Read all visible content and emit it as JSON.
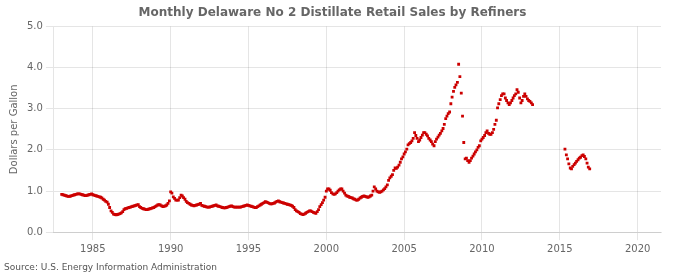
{
  "chart_data": {
    "type": "scatter",
    "title": "Monthly Delaware No 2 Distillate Retail Sales by Refiners",
    "y_label": "Dollars per Gallon",
    "annotations": [
      "Source: U.S. Energy Information Administration"
    ],
    "xlim": [
      1982.5,
      2021.5
    ],
    "ylim": [
      0.0,
      5.0
    ],
    "xticks": [
      1985,
      1990,
      1995,
      2000,
      2005,
      2010,
      2015,
      2020
    ],
    "yticks": [
      {
        "value": 0.0,
        "label": "0.0"
      },
      {
        "value": 1.0,
        "label": "1.0"
      },
      {
        "value": 2.0,
        "label": "2.0"
      },
      {
        "value": 3.0,
        "label": "3.0"
      },
      {
        "value": 4.0,
        "label": "4.0"
      },
      {
        "value": 5.0,
        "label": "5.0"
      }
    ],
    "grid": true,
    "series": [
      {
        "color": "#cc0000",
        "marker": "square",
        "x": [
          1983.0,
          1983.08,
          1983.17,
          1983.25,
          1983.33,
          1983.42,
          1983.5,
          1983.58,
          1983.67,
          1983.75,
          1983.83,
          1983.92,
          1984.0,
          1984.08,
          1984.17,
          1984.25,
          1984.33,
          1984.42,
          1984.5,
          1984.58,
          1984.67,
          1984.75,
          1984.83,
          1984.92,
          1985.0,
          1985.08,
          1985.17,
          1985.25,
          1985.33,
          1985.42,
          1985.5,
          1985.58,
          1985.67,
          1985.75,
          1985.83,
          1985.92,
          1986.0,
          1986.08,
          1986.17,
          1986.25,
          1986.33,
          1986.42,
          1986.5,
          1986.58,
          1986.67,
          1986.75,
          1986.83,
          1986.92,
          1987.0,
          1987.08,
          1987.17,
          1987.25,
          1987.33,
          1987.42,
          1987.5,
          1987.58,
          1987.67,
          1987.75,
          1987.83,
          1987.92,
          1988.0,
          1988.08,
          1988.17,
          1988.25,
          1988.33,
          1988.42,
          1988.5,
          1988.58,
          1988.67,
          1988.75,
          1988.83,
          1988.92,
          1989.0,
          1989.08,
          1989.17,
          1989.25,
          1989.33,
          1989.42,
          1989.5,
          1989.58,
          1989.67,
          1989.75,
          1989.83,
          1989.92,
          1990.0,
          1990.08,
          1990.17,
          1990.25,
          1990.33,
          1990.42,
          1990.5,
          1990.58,
          1990.67,
          1990.75,
          1990.83,
          1990.92,
          1991.0,
          1991.08,
          1991.17,
          1991.25,
          1991.33,
          1991.42,
          1991.5,
          1991.58,
          1991.67,
          1991.75,
          1991.83,
          1991.92,
          1992.0,
          1992.08,
          1992.17,
          1992.25,
          1992.33,
          1992.42,
          1992.5,
          1992.58,
          1992.67,
          1992.75,
          1992.83,
          1992.92,
          1993.0,
          1993.08,
          1993.17,
          1993.25,
          1993.33,
          1993.42,
          1993.5,
          1993.58,
          1993.67,
          1993.75,
          1993.83,
          1993.92,
          1994.0,
          1994.08,
          1994.17,
          1994.25,
          1994.33,
          1994.42,
          1994.5,
          1994.58,
          1994.67,
          1994.75,
          1994.83,
          1994.92,
          1995.0,
          1995.08,
          1995.17,
          1995.25,
          1995.33,
          1995.42,
          1995.5,
          1995.58,
          1995.67,
          1995.75,
          1995.83,
          1995.92,
          1996.0,
          1996.08,
          1996.17,
          1996.25,
          1996.33,
          1996.42,
          1996.5,
          1996.58,
          1996.67,
          1996.75,
          1996.83,
          1996.92,
          1997.0,
          1997.08,
          1997.17,
          1997.25,
          1997.33,
          1997.42,
          1997.5,
          1997.58,
          1997.67,
          1997.75,
          1997.83,
          1997.92,
          1998.0,
          1998.08,
          1998.17,
          1998.25,
          1998.33,
          1998.42,
          1998.5,
          1998.58,
          1998.67,
          1998.75,
          1998.83,
          1998.92,
          1999.0,
          1999.08,
          1999.17,
          1999.25,
          1999.33,
          1999.42,
          1999.5,
          1999.58,
          1999.67,
          1999.75,
          1999.83,
          1999.92,
          2000.0,
          2000.08,
          2000.17,
          2000.25,
          2000.33,
          2000.42,
          2000.5,
          2000.58,
          2000.67,
          2000.75,
          2000.83,
          2000.92,
          2001.0,
          2001.08,
          2001.17,
          2001.25,
          2001.33,
          2001.42,
          2001.5,
          2001.58,
          2001.67,
          2001.75,
          2001.83,
          2001.92,
          2002.0,
          2002.08,
          2002.17,
          2002.25,
          2002.33,
          2002.42,
          2002.5,
          2002.58,
          2002.67,
          2002.75,
          2002.83,
          2002.92,
          2003.0,
          2003.08,
          2003.17,
          2003.25,
          2003.33,
          2003.42,
          2003.5,
          2003.58,
          2003.67,
          2003.75,
          2003.83,
          2003.92,
          2004.0,
          2004.08,
          2004.17,
          2004.25,
          2004.33,
          2004.42,
          2004.5,
          2004.58,
          2004.67,
          2004.75,
          2004.83,
          2004.92,
          2005.0,
          2005.08,
          2005.17,
          2005.25,
          2005.33,
          2005.42,
          2005.5,
          2005.58,
          2005.67,
          2005.75,
          2005.83,
          2005.92,
          2006.0,
          2006.08,
          2006.17,
          2006.25,
          2006.33,
          2006.42,
          2006.5,
          2006.58,
          2006.67,
          2006.75,
          2006.83,
          2006.92,
          2007.0,
          2007.08,
          2007.17,
          2007.25,
          2007.33,
          2007.42,
          2007.5,
          2007.58,
          2007.67,
          2007.75,
          2007.83,
          2007.92,
          2008.0,
          2008.08,
          2008.17,
          2008.25,
          2008.33,
          2008.42,
          2008.5,
          2008.58,
          2008.67,
          2008.75,
          2008.83,
          2008.92,
          2009.0,
          2009.08,
          2009.17,
          2009.25,
          2009.33,
          2009.42,
          2009.5,
          2009.58,
          2009.67,
          2009.75,
          2009.83,
          2009.92,
          2010.0,
          2010.08,
          2010.17,
          2010.25,
          2010.33,
          2010.42,
          2010.5,
          2010.58,
          2010.67,
          2010.75,
          2010.83,
          2010.92,
          2011.0,
          2011.08,
          2011.17,
          2011.25,
          2011.33,
          2011.42,
          2011.5,
          2011.58,
          2011.67,
          2011.75,
          2011.83,
          2011.92,
          2012.0,
          2012.08,
          2012.17,
          2012.25,
          2012.33,
          2012.42,
          2012.5,
          2012.58,
          2012.67,
          2012.75,
          2012.83,
          2012.92,
          2013.0,
          2013.08,
          2013.17,
          2013.25
        ],
        "values": [
          0.92,
          0.91,
          0.9,
          0.89,
          0.88,
          0.87,
          0.87,
          0.88,
          0.89,
          0.9,
          0.91,
          0.92,
          0.93,
          0.93,
          0.93,
          0.92,
          0.91,
          0.9,
          0.89,
          0.89,
          0.9,
          0.91,
          0.92,
          0.93,
          0.91,
          0.9,
          0.89,
          0.88,
          0.87,
          0.86,
          0.85,
          0.83,
          0.8,
          0.78,
          0.75,
          0.73,
          0.68,
          0.6,
          0.52,
          0.48,
          0.44,
          0.43,
          0.42,
          0.43,
          0.44,
          0.45,
          0.47,
          0.5,
          0.55,
          0.57,
          0.58,
          0.59,
          0.6,
          0.61,
          0.62,
          0.63,
          0.64,
          0.65,
          0.66,
          0.67,
          0.62,
          0.6,
          0.58,
          0.57,
          0.56,
          0.55,
          0.55,
          0.56,
          0.57,
          0.58,
          0.59,
          0.6,
          0.62,
          0.64,
          0.66,
          0.67,
          0.66,
          0.64,
          0.62,
          0.63,
          0.64,
          0.66,
          0.7,
          0.76,
          0.98,
          0.95,
          0.86,
          0.82,
          0.78,
          0.78,
          0.78,
          0.84,
          0.9,
          0.88,
          0.84,
          0.8,
          0.75,
          0.72,
          0.7,
          0.68,
          0.66,
          0.65,
          0.64,
          0.65,
          0.66,
          0.67,
          0.68,
          0.7,
          0.65,
          0.64,
          0.63,
          0.62,
          0.61,
          0.61,
          0.61,
          0.62,
          0.63,
          0.64,
          0.65,
          0.66,
          0.64,
          0.63,
          0.62,
          0.61,
          0.6,
          0.59,
          0.59,
          0.6,
          0.61,
          0.62,
          0.63,
          0.64,
          0.62,
          0.61,
          0.61,
          0.61,
          0.61,
          0.61,
          0.61,
          0.62,
          0.63,
          0.64,
          0.65,
          0.66,
          0.65,
          0.64,
          0.63,
          0.62,
          0.61,
          0.6,
          0.6,
          0.62,
          0.64,
          0.66,
          0.68,
          0.7,
          0.72,
          0.74,
          0.73,
          0.72,
          0.7,
          0.69,
          0.69,
          0.7,
          0.71,
          0.73,
          0.75,
          0.76,
          0.74,
          0.73,
          0.72,
          0.71,
          0.7,
          0.69,
          0.68,
          0.67,
          0.66,
          0.65,
          0.63,
          0.6,
          0.55,
          0.52,
          0.5,
          0.48,
          0.45,
          0.44,
          0.43,
          0.44,
          0.46,
          0.48,
          0.5,
          0.52,
          0.52,
          0.5,
          0.48,
          0.47,
          0.46,
          0.5,
          0.55,
          0.62,
          0.67,
          0.72,
          0.78,
          0.85,
          1.0,
          1.05,
          1.05,
          1.02,
          0.96,
          0.93,
          0.92,
          0.93,
          0.96,
          1.0,
          1.03,
          1.05,
          1.05,
          1.0,
          0.95,
          0.9,
          0.88,
          0.87,
          0.85,
          0.84,
          0.83,
          0.81,
          0.8,
          0.78,
          0.78,
          0.8,
          0.83,
          0.85,
          0.87,
          0.88,
          0.87,
          0.86,
          0.85,
          0.86,
          0.88,
          0.9,
          1.0,
          1.1,
          1.05,
          1.0,
          0.98,
          0.97,
          0.98,
          1.0,
          1.03,
          1.06,
          1.1,
          1.15,
          1.26,
          1.32,
          1.36,
          1.4,
          1.5,
          1.56,
          1.55,
          1.58,
          1.63,
          1.7,
          1.78,
          1.83,
          1.9,
          1.95,
          2.02,
          2.12,
          2.15,
          2.18,
          2.22,
          2.28,
          2.42,
          2.35,
          2.28,
          2.2,
          2.24,
          2.3,
          2.36,
          2.42,
          2.42,
          2.38,
          2.34,
          2.28,
          2.24,
          2.2,
          2.14,
          2.1,
          2.2,
          2.26,
          2.31,
          2.36,
          2.4,
          2.46,
          2.52,
          2.62,
          2.76,
          2.82,
          2.88,
          2.92,
          3.12,
          3.28,
          3.42,
          3.52,
          3.58,
          3.64,
          4.08,
          3.78,
          3.38,
          2.82,
          2.18,
          1.78,
          1.8,
          1.74,
          1.7,
          1.74,
          1.8,
          1.85,
          1.9,
          1.95,
          2.0,
          2.06,
          2.1,
          2.22,
          2.26,
          2.3,
          2.35,
          2.42,
          2.46,
          2.4,
          2.38,
          2.38,
          2.42,
          2.5,
          2.62,
          2.72,
          3.02,
          3.12,
          3.22,
          3.32,
          3.36,
          3.36,
          3.26,
          3.2,
          3.14,
          3.1,
          3.14,
          3.2,
          3.26,
          3.32,
          3.36,
          3.46,
          3.4,
          3.26,
          3.14,
          3.2,
          3.3,
          3.36,
          3.3,
          3.24,
          3.2,
          3.18,
          3.14,
          3.1
        ]
      },
      {
        "color": "#cc0000",
        "marker": "square",
        "x": [
          2015.33,
          2015.42,
          2015.5,
          2015.58,
          2015.67,
          2015.75,
          2015.83,
          2015.92,
          2016.0,
          2016.08,
          2016.17,
          2016.25,
          2016.33,
          2016.42,
          2016.5,
          2016.58,
          2016.67,
          2016.75,
          2016.83,
          2016.92
        ],
        "values": [
          2.02,
          1.88,
          1.78,
          1.66,
          1.56,
          1.54,
          1.6,
          1.64,
          1.68,
          1.72,
          1.76,
          1.8,
          1.82,
          1.86,
          1.88,
          1.84,
          1.78,
          1.68,
          1.58,
          1.54
        ]
      }
    ]
  }
}
